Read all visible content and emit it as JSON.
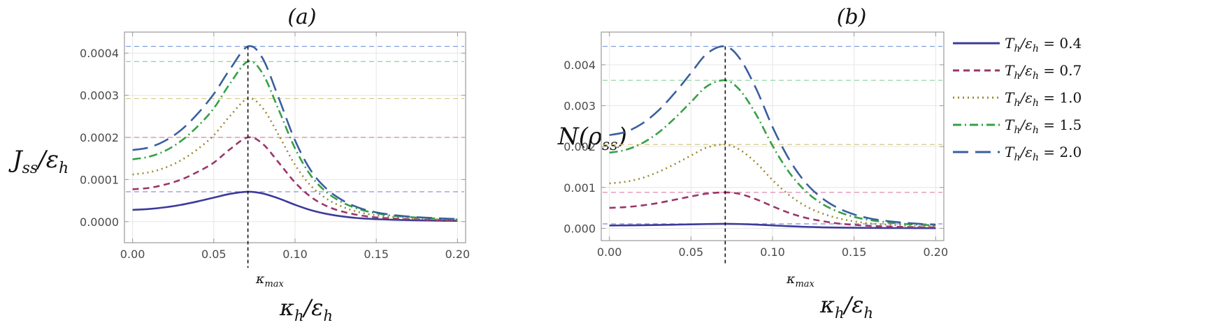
{
  "chart_data": [
    {
      "type": "line",
      "panel_title": "(a)",
      "ylabel": "J_ss/ε_h",
      "xlabel": "κ_h/ε_h",
      "xlim": [
        -0.005,
        0.205
      ],
      "ylim": [
        -5e-05,
        0.00045
      ],
      "xticks": [
        0.0,
        0.05,
        0.1,
        0.15,
        0.2
      ],
      "xtick_labels": [
        "0.00",
        "0.05",
        "0.10",
        "0.15",
        "0.20"
      ],
      "yticks": [
        0.0,
        0.0001,
        0.0002,
        0.0003,
        0.0004
      ],
      "ytick_labels": [
        "0.0000",
        "0.0001",
        "0.0002",
        "0.0003",
        "0.0004"
      ],
      "vline": {
        "x": 0.071,
        "label": "κ_max"
      },
      "series": [
        {
          "name": "T_h/ε_h = 0.4",
          "T": 0.4,
          "x": [
            0.0,
            0.01,
            0.02,
            0.03,
            0.04,
            0.05,
            0.06,
            0.071,
            0.08,
            0.09,
            0.1,
            0.11,
            0.12,
            0.13,
            0.14,
            0.15,
            0.16,
            0.17,
            0.18,
            0.19,
            0.2
          ],
          "values": [
            2.8e-05,
            3e-05,
            3.4e-05,
            4e-05,
            4.8e-05,
            5.7e-05,
            6.6e-05,
            7.1e-05,
            6.7e-05,
            5.5e-05,
            4e-05,
            2.7e-05,
            1.8e-05,
            1.2e-05,
            8e-06,
            6e-06,
            4.5e-06,
            3.5e-06,
            2.8e-06,
            2.2e-06,
            1.8e-06
          ],
          "hline": 7.1e-05
        },
        {
          "name": "T_h/ε_h = 0.7",
          "T": 0.7,
          "x": [
            0.0,
            0.01,
            0.02,
            0.03,
            0.04,
            0.05,
            0.06,
            0.071,
            0.08,
            0.09,
            0.1,
            0.11,
            0.12,
            0.13,
            0.14,
            0.15,
            0.16,
            0.17,
            0.18,
            0.19,
            0.2
          ],
          "values": [
            7.7e-05,
            8e-05,
            8.8e-05,
            0.0001,
            0.000118,
            0.00014,
            0.000172,
            0.0002,
            0.000185,
            0.00014,
            9.3e-05,
            5.8e-05,
            3.6e-05,
            2.3e-05,
            1.5e-05,
            1e-05,
            7.5e-06,
            5.8e-06,
            4.5e-06,
            3.6e-06,
            3e-06
          ],
          "hline": 0.0002
        },
        {
          "name": "T_h/ε_h = 1.0",
          "T": 1.0,
          "x": [
            0.0,
            0.01,
            0.02,
            0.03,
            0.04,
            0.05,
            0.06,
            0.071,
            0.08,
            0.09,
            0.1,
            0.11,
            0.12,
            0.13,
            0.14,
            0.15,
            0.16,
            0.17,
            0.18,
            0.19,
            0.2
          ],
          "values": [
            0.000112,
            0.000117,
            0.000128,
            0.000146,
            0.000172,
            0.000205,
            0.000251,
            0.000292,
            0.00027,
            0.000205,
            0.000135,
            8.4e-05,
            5.3e-05,
            3.4e-05,
            2.2e-05,
            1.5e-05,
            1.1e-05,
            8.5e-06,
            6.6e-06,
            5.3e-06,
            4.3e-06
          ],
          "hline": 0.000292
        },
        {
          "name": "T_h/ε_h = 1.5",
          "T": 1.5,
          "x": [
            0.0,
            0.01,
            0.02,
            0.03,
            0.04,
            0.05,
            0.06,
            0.071,
            0.08,
            0.09,
            0.1,
            0.11,
            0.12,
            0.13,
            0.14,
            0.15,
            0.16,
            0.17,
            0.18,
            0.19,
            0.2
          ],
          "values": [
            0.000148,
            0.000154,
            0.000168,
            0.000192,
            0.000226,
            0.000269,
            0.000328,
            0.00038,
            0.000352,
            0.000265,
            0.000174,
            0.000108,
            6.8e-05,
            4.4e-05,
            2.9e-05,
            2e-05,
            1.4e-05,
            1.1e-05,
            8.6e-06,
            6.9e-06,
            5.6e-06
          ],
          "hline": 0.00038
        },
        {
          "name": "T_h/ε_h = 2.0",
          "T": 2.0,
          "x": [
            0.0,
            0.01,
            0.02,
            0.03,
            0.04,
            0.05,
            0.06,
            0.071,
            0.08,
            0.09,
            0.1,
            0.11,
            0.12,
            0.13,
            0.14,
            0.15,
            0.16,
            0.17,
            0.18,
            0.19,
            0.2
          ],
          "values": [
            0.00017,
            0.000176,
            0.000192,
            0.000218,
            0.000256,
            0.000303,
            0.000362,
            0.000416,
            0.000388,
            0.000293,
            0.000193,
            0.00012,
            7.6e-05,
            4.9e-05,
            3.2e-05,
            2.2e-05,
            1.6e-05,
            1.2e-05,
            9.5e-06,
            7.6e-06,
            6.2e-06
          ],
          "hline": 0.000416
        }
      ]
    },
    {
      "type": "line",
      "panel_title": "(b)",
      "ylabel": "N(ρ_ss)",
      "xlabel": "κ_h/ε_h",
      "xlim": [
        -0.005,
        0.205
      ],
      "ylim": [
        -0.0003,
        0.0048
      ],
      "xticks": [
        0.0,
        0.05,
        0.1,
        0.15,
        0.2
      ],
      "xtick_labels": [
        "0.00",
        "0.05",
        "0.10",
        "0.15",
        "0.20"
      ],
      "yticks": [
        0.0,
        0.001,
        0.002,
        0.003,
        0.004
      ],
      "ytick_labels": [
        "0.000",
        "0.001",
        "0.002",
        "0.003",
        "0.004"
      ],
      "vline": {
        "x": 0.071,
        "label": "κ_max"
      },
      "series": [
        {
          "name": "T_h/ε_h = 0.4",
          "T": 0.4,
          "x": [
            0.0,
            0.01,
            0.02,
            0.03,
            0.04,
            0.05,
            0.06,
            0.071,
            0.08,
            0.09,
            0.1,
            0.11,
            0.12,
            0.13,
            0.14,
            0.15,
            0.16,
            0.17,
            0.18,
            0.19,
            0.2
          ],
          "values": [
            7e-05,
            7.2e-05,
            7.6e-05,
            8.2e-05,
            9e-05,
            9.8e-05,
            0.000105,
            0.00011,
            0.000105,
            9.2e-05,
            7.2e-05,
            5.2e-05,
            3.7e-05,
            2.6e-05,
            1.9e-05,
            1.4e-05,
            1.1e-05,
            8.5e-06,
            6.8e-06,
            5.5e-06,
            4.5e-06
          ],
          "hline": 0.00011
        },
        {
          "name": "T_h/ε_h = 0.7",
          "T": 0.7,
          "x": [
            0.0,
            0.01,
            0.02,
            0.03,
            0.04,
            0.05,
            0.06,
            0.071,
            0.08,
            0.09,
            0.1,
            0.11,
            0.12,
            0.13,
            0.14,
            0.15,
            0.16,
            0.17,
            0.18,
            0.19,
            0.2
          ],
          "values": [
            0.0005,
            0.00052,
            0.00056,
            0.00062,
            0.0007,
            0.00078,
            0.00085,
            0.00088,
            0.00084,
            0.00071,
            0.00054,
            0.00038,
            0.00026,
            0.00018,
            0.00012,
            8.5e-05,
            6e-05,
            4.5e-05,
            3.5e-05,
            2.8e-05,
            2.2e-05
          ],
          "hline": 0.00088
        },
        {
          "name": "T_h/ε_h = 1.0",
          "T": 1.0,
          "x": [
            0.0,
            0.01,
            0.02,
            0.03,
            0.04,
            0.05,
            0.06,
            0.071,
            0.08,
            0.09,
            0.1,
            0.11,
            0.12,
            0.13,
            0.14,
            0.15,
            0.16,
            0.17,
            0.18,
            0.19,
            0.2
          ],
          "values": [
            0.0011,
            0.00114,
            0.00123,
            0.00138,
            0.00157,
            0.00178,
            0.00198,
            0.00205,
            0.00192,
            0.0016,
            0.00118,
            0.00082,
            0.00055,
            0.00037,
            0.00025,
            0.00017,
            0.00012,
            9e-05,
            7e-05,
            5.5e-05,
            4.5e-05
          ],
          "hline": 0.00205
        },
        {
          "name": "T_h/ε_h = 1.5",
          "T": 1.5,
          "x": [
            0.0,
            0.01,
            0.02,
            0.03,
            0.04,
            0.05,
            0.06,
            0.071,
            0.08,
            0.09,
            0.1,
            0.11,
            0.12,
            0.13,
            0.14,
            0.15,
            0.16,
            0.17,
            0.18,
            0.19,
            0.2
          ],
          "values": [
            0.00185,
            0.00192,
            0.00208,
            0.00234,
            0.00269,
            0.00309,
            0.00348,
            0.00362,
            0.00338,
            0.00278,
            0.00202,
            0.00138,
            0.00092,
            0.00061,
            0.00041,
            0.00028,
            0.0002,
            0.00015,
            0.00011,
            9e-05,
            7e-05
          ],
          "hline": 0.00362
        },
        {
          "name": "T_h/ε_h = 2.0",
          "T": 2.0,
          "x": [
            0.0,
            0.01,
            0.02,
            0.03,
            0.04,
            0.05,
            0.06,
            0.071,
            0.08,
            0.09,
            0.1,
            0.11,
            0.12,
            0.13,
            0.14,
            0.15,
            0.16,
            0.17,
            0.18,
            0.19,
            0.2
          ],
          "values": [
            0.00228,
            0.00236,
            0.00256,
            0.00288,
            0.00331,
            0.0038,
            0.00428,
            0.00445,
            0.00415,
            0.00341,
            0.00248,
            0.0017,
            0.00113,
            0.00075,
            0.0005,
            0.00034,
            0.00024,
            0.00018,
            0.00014,
            0.00011,
            9e-05
          ],
          "hline": 0.00445
        }
      ]
    }
  ],
  "legend": {
    "placement": "right",
    "entries": [
      {
        "prefix": "T",
        "prefix_sub": "h",
        "slash": "/ε",
        "slash_sub": "h",
        "value": " = 0.4"
      },
      {
        "prefix": "T",
        "prefix_sub": "h",
        "slash": "/ε",
        "slash_sub": "h",
        "value": " = 0.7"
      },
      {
        "prefix": "T",
        "prefix_sub": "h",
        "slash": "/ε",
        "slash_sub": "h",
        "value": " = 1.0"
      },
      {
        "prefix": "T",
        "prefix_sub": "h",
        "slash": "/ε",
        "slash_sub": "h",
        "value": " = 1.5"
      },
      {
        "prefix": "T",
        "prefix_sub": "h",
        "slash": "/ε",
        "slash_sub": "h",
        "value": " = 2.0"
      }
    ]
  },
  "labels": {
    "a_ylabel_main": "J",
    "a_ylabel_sub": "ss",
    "a_ylabel_rest": "/ε",
    "a_ylabel_sub2": "h",
    "b_ylabel_main": "N(ρ",
    "b_ylabel_sub": "ss",
    "b_ylabel_rest": ")",
    "xlabel_main": "κ",
    "xlabel_sub": "h",
    "xlabel_rest": "/ε",
    "xlabel_sub2": "h",
    "kmax_main": "κ",
    "kmax_sub": "max"
  },
  "colors": {
    "T0.4": "#3b3b9a",
    "T0.7": "#9b3568",
    "T1.0": "#9a8a35",
    "T1.5": "#35a045",
    "T2.0": "#3a5f9e",
    "hline_T0.4": "#7f86e0",
    "hline_T0.7": "#e07fa8",
    "hline_T1.0": "#d4c883",
    "hline_T1.5": "#88d49a",
    "hline_T2.0": "#7f9fe0",
    "frame": "#9a9a9a",
    "grid": "#e6e6e6"
  },
  "styles": {
    "T0.4": "solid",
    "T0.7": "dashed",
    "T1.0": "dotted",
    "T1.5": "dashdot",
    "T2.0": "longdash"
  }
}
